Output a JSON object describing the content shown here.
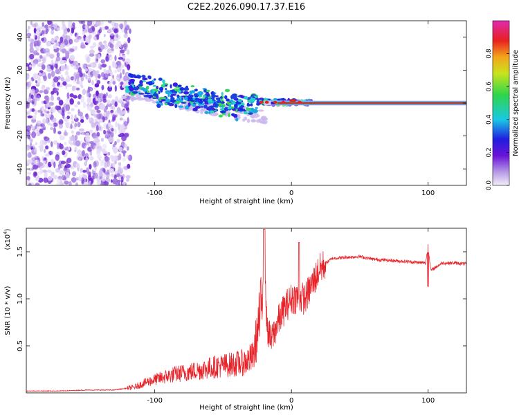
{
  "figure": {
    "title": "C2E2.2026.090.17.37.E16"
  },
  "chart_data": [
    {
      "type": "heatmap",
      "title": "C2E2.2026.090.17.37.E16",
      "xlabel": "Height of straight line (km)",
      "ylabel": "Frequency (Hz)",
      "xlim": [
        -194,
        128
      ],
      "ylim": [
        -50,
        50
      ],
      "x_ticks": [
        -100,
        0,
        100
      ],
      "y_ticks": [
        -40,
        -20,
        0,
        20,
        40
      ],
      "colorbar": {
        "label": "Normalized spectral amplitude",
        "range": [
          0.0,
          1.0
        ],
        "ticks": [
          "0.0",
          "0.2",
          "0.4",
          "0.6",
          "0.8"
        ],
        "tick_values": [
          0.0,
          0.2,
          0.4,
          0.6,
          0.8
        ]
      },
      "ridge": {
        "description_points_x": [
          -120,
          -100,
          -80,
          -60,
          -40,
          -20,
          0,
          10,
          128
        ],
        "description_points_freq": [
          12,
          8,
          4,
          2,
          0,
          1,
          1,
          0,
          0
        ]
      }
    },
    {
      "type": "line",
      "xlabel": "Height of straight line (km)",
      "ylabel": "SNR (10 * v/v)",
      "y_scale_label": "(x10",
      "y_scale_exponent": "4",
      "xlim": [
        -194,
        128
      ],
      "ylim": [
        0,
        1.75
      ],
      "x_ticks": [
        -100,
        0,
        100
      ],
      "y_ticks": [
        0.5,
        1.0,
        1.5
      ],
      "y_tick_labels": [
        "0.5",
        "1.0",
        "1.5"
      ],
      "series": [
        {
          "name": "SNR",
          "color": "#e8242b",
          "x": [
            -194,
            -170,
            -150,
            -130,
            -115,
            -105,
            -95,
            -85,
            -75,
            -65,
            -55,
            -45,
            -35,
            -28,
            -22,
            -20,
            -18,
            -15,
            -10,
            -5,
            0,
            5,
            10,
            15,
            20,
            25,
            30,
            40,
            50,
            60,
            70,
            80,
            90,
            98,
            100,
            102,
            110,
            120,
            128
          ],
          "y": [
            0.02,
            0.02,
            0.03,
            0.03,
            0.06,
            0.12,
            0.16,
            0.2,
            0.22,
            0.25,
            0.28,
            0.3,
            0.32,
            0.38,
            0.9,
            1.7,
            0.7,
            0.55,
            0.75,
            0.9,
            1.0,
            1.02,
            1.0,
            1.15,
            1.3,
            1.38,
            1.43,
            1.44,
            1.45,
            1.42,
            1.41,
            1.4,
            1.39,
            1.38,
            1.55,
            1.3,
            1.38,
            1.38,
            1.37
          ]
        }
      ]
    }
  ]
}
